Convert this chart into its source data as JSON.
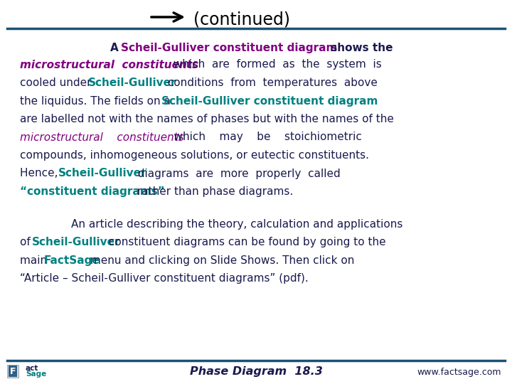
{
  "title_arrow": "→",
  "title_text": "(continued)",
  "title_color": "#000000",
  "title_fontsize": 18,
  "header_line_color": "#1a5276",
  "footer_line_color": "#1a5276",
  "bg_color": "#ffffff",
  "footer_left": "Phase Diagram  18.3",
  "footer_right": "www.factsage.com",
  "teal": "#008080",
  "purple": "#800080",
  "dark_navy": "#1a1a4e",
  "paragraph1": [
    {
      "text": "A ",
      "color": "#1a1a4e",
      "bold": false,
      "italic": false
    },
    {
      "text": "Scheil-Gulliver constituent diagram",
      "color": "#800080",
      "bold": true,
      "italic": false
    },
    {
      "text": " shows the",
      "color": "#1a1a4e",
      "bold": false,
      "italic": false
    }
  ],
  "paragraph2_line1": [
    {
      "text": "microstructural  constituents",
      "color": "#800080",
      "bold": true,
      "italic": true
    },
    {
      "text": "  which  are  formed  as  the  system  is",
      "color": "#1a1a4e",
      "bold": false,
      "italic": false
    }
  ],
  "paragraph2_line2": [
    {
      "text": "cooled under ",
      "color": "#1a1a4e",
      "bold": false,
      "italic": false
    },
    {
      "text": "Scheil-Gulliver",
      "color": "#008080",
      "bold": true,
      "italic": false
    },
    {
      "text": "  conditions  from  temperatures  above",
      "color": "#1a1a4e",
      "bold": false,
      "italic": false
    }
  ],
  "paragraph2_line3": [
    {
      "text": "the liquidus. The fields on a ",
      "color": "#1a1a4e",
      "bold": false,
      "italic": false
    },
    {
      "text": "Scheil-Gulliver constituent diagram",
      "color": "#008080",
      "bold": true,
      "italic": false
    }
  ],
  "paragraph2_line4": [
    {
      "text": "are labelled not with the names of phases but with the names of the",
      "color": "#1a1a4e",
      "bold": false,
      "italic": false
    }
  ],
  "paragraph2_line5": [
    {
      "text": "microstructural    constituents",
      "color": "#800080",
      "bold": false,
      "italic": true
    },
    {
      "text": "    which    may    be    stoichiometric",
      "color": "#1a1a4e",
      "bold": false,
      "italic": false
    }
  ],
  "paragraph2_line6": [
    {
      "text": "compounds, inhomogeneous solutions, or eutectic constituents.",
      "color": "#1a1a4e",
      "bold": false,
      "italic": false
    }
  ],
  "paragraph2_line7": [
    {
      "text": "Hence,  ",
      "color": "#1a1a4e",
      "bold": false,
      "italic": false
    },
    {
      "text": "Scheil-Gulliver",
      "color": "#008080",
      "bold": true,
      "italic": false
    },
    {
      "text": "  diagrams  are  more  properly  called",
      "color": "#1a1a4e",
      "bold": false,
      "italic": false
    }
  ],
  "paragraph2_line8": [
    {
      "text": "“constituent diagrams”",
      "color": "#008080",
      "bold": true,
      "italic": false
    },
    {
      "text": " rather than phase diagrams.",
      "color": "#1a1a4e",
      "bold": false,
      "italic": false
    }
  ],
  "paragraph3_line1": [
    {
      "text": "An article describing the theory, calculation and applications",
      "color": "#1a1a4e",
      "bold": false,
      "italic": false
    }
  ],
  "paragraph3_line2": [
    {
      "text": "of ",
      "color": "#1a1a4e",
      "bold": false,
      "italic": false
    },
    {
      "text": "Scheil-Gulliver",
      "color": "#008080",
      "bold": true,
      "italic": false
    },
    {
      "text": " constituent diagrams can be found by going to the",
      "color": "#1a1a4e",
      "bold": false,
      "italic": false
    }
  ],
  "paragraph3_line3": [
    {
      "text": "main ",
      "color": "#1a1a4e",
      "bold": false,
      "italic": false
    },
    {
      "text": "FactSage",
      "color": "#008080",
      "bold": true,
      "italic": false
    },
    {
      "text": " menu and clicking on Slide Shows. Then click on",
      "color": "#1a1a4e",
      "bold": false,
      "italic": false
    }
  ],
  "paragraph3_line4": [
    {
      "text": "“Article – Scheil-Gulliver constituent diagrams” (pdf).",
      "color": "#1a1a4e",
      "bold": false,
      "italic": false
    }
  ]
}
